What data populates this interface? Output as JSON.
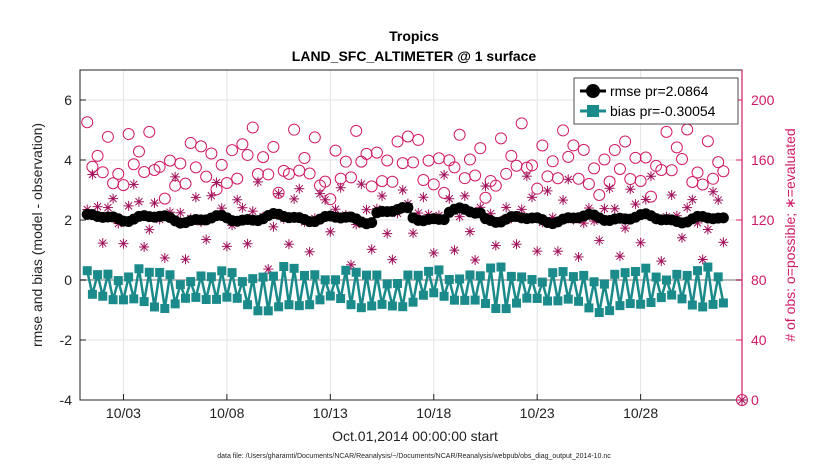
{
  "chart_data": {
    "type": "line",
    "title": "Tropics",
    "subtitle": "LAND_SFC_ALTIMETER @ 1 surface",
    "xlabel": "Oct.01,2014 00:00:00 start",
    "ylabel": "rmse and bias (model - observation)",
    "ylabel_right": "# of obs: o=possible; ∗=evaluated",
    "ylim": [
      -4,
      7
    ],
    "yticks": [
      -4,
      -2,
      0,
      2,
      4,
      6
    ],
    "ylim_right": [
      0,
      220
    ],
    "yticks_right": [
      0,
      40,
      80,
      120,
      160,
      200
    ],
    "xlim_days": [
      0.4,
      32.4
    ],
    "xticks": [
      {
        "day": 2.5,
        "label": "10/03"
      },
      {
        "day": 7.5,
        "label": "10/08"
      },
      {
        "day": 12.5,
        "label": "10/13"
      },
      {
        "day": 17.5,
        "label": "10/18"
      },
      {
        "day": 22.5,
        "label": "10/23"
      },
      {
        "day": 27.5,
        "label": "10/28"
      }
    ],
    "grid": true,
    "legend_position": "top-right",
    "footer": "data file: /Users/gharamti/Documents/NCAR/Reanalysis/~/Documents/NCAR/Reanalysis/webpub/obs_diag_output_2014-10.nc",
    "series": [
      {
        "name": "rmse",
        "legend": "rmse pr=2.0864",
        "color": "#000000",
        "marker": "circle",
        "axis": "left"
      },
      {
        "name": "bias",
        "legend": "bias pr=-0.30054",
        "color": "#1a8a8a",
        "marker": "square",
        "axis": "left"
      },
      {
        "name": "possible",
        "color": "#d11a66",
        "marker": "open-circle",
        "axis": "right"
      },
      {
        "name": "evaluated",
        "color": "#a0115a",
        "marker": "asterisk",
        "axis": "right"
      }
    ]
  }
}
